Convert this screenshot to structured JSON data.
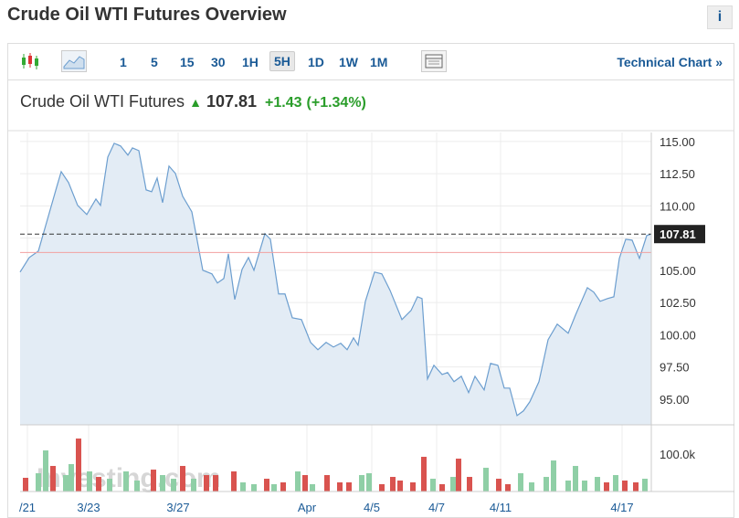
{
  "header": {
    "title": "Crude Oil WTI Futures Overview",
    "info": "i"
  },
  "toolbar": {
    "intervals": [
      "1",
      "5",
      "15",
      "30",
      "1H",
      "5H",
      "1D",
      "1W",
      "1M"
    ],
    "active": "5H",
    "link": "Technical Chart »"
  },
  "quote": {
    "name": "Crude Oil WTI Futures",
    "price": 107.81,
    "change": "+1.43",
    "change_pct": "(+1.34%)"
  },
  "watermark": "Investing.com",
  "chart": {
    "type": "line",
    "x": [
      0,
      10,
      20,
      30,
      40,
      45,
      53,
      63,
      73,
      83,
      88,
      96,
      103,
      110,
      118,
      123,
      130,
      138,
      144,
      150,
      156,
      163,
      170,
      178,
      188,
      200,
      210,
      216,
      223,
      228,
      235,
      243,
      250,
      256,
      268,
      274,
      283,
      290,
      298,
      308,
      318,
      326,
      335,
      343,
      351,
      358,
      365,
      370,
      378,
      388,
      396,
      405,
      418,
      428,
      435,
      440,
      446,
      453,
      462,
      468,
      475,
      483,
      491,
      498,
      508,
      515,
      523,
      530,
      536,
      544,
      551,
      558,
      568,
      578,
      588,
      600,
      608,
      621,
      628,
      635,
      643,
      650,
      656,
      663,
      670,
      678,
      686,
      691
    ],
    "series": [
      {
        "name": "Crude Oil WTI Futures",
        "color": "#6c9ecf",
        "fill": "#e3ecf5",
        "values": [
          104.86,
          105.99,
          106.49,
          108.97,
          111.45,
          112.66,
          111.81,
          110.04,
          109.33,
          110.53,
          110.04,
          113.79,
          114.86,
          114.65,
          113.94,
          114.5,
          114.29,
          111.24,
          111.1,
          112.16,
          110.25,
          113.09,
          112.52,
          110.74,
          109.54,
          105,
          104.72,
          104.01,
          104.36,
          106.28,
          102.73,
          105.07,
          105.99,
          105,
          107.84,
          107.41,
          103.16,
          103.16,
          101.31,
          101.17,
          99.4,
          98.83,
          99.4,
          99.04,
          99.33,
          98.83,
          99.75,
          99.18,
          102.59,
          104.86,
          104.72,
          103.44,
          101.17,
          101.88,
          102.94,
          102.8,
          96.56,
          97.62,
          96.91,
          97.06,
          96.35,
          96.77,
          95.5,
          96.77,
          95.71,
          97.77,
          97.62,
          95.85,
          95.85,
          93.72,
          94.08,
          94.79,
          96.35,
          99.61,
          100.82,
          100.11,
          101.52,
          103.65,
          103.3,
          102.59,
          102.8,
          102.94,
          105.92,
          107.41,
          107.34,
          105.92,
          107.7,
          107.81
        ]
      }
    ],
    "prev_close": 106.38,
    "prev_close_color": "#f2a0a0",
    "xlim": [
      0,
      691
    ],
    "xticks": [
      {
        "value": 8,
        "label": "/21"
      },
      {
        "value": 75,
        "label": "3/23"
      },
      {
        "value": 173,
        "label": "3/27"
      },
      {
        "value": 314,
        "label": "Apr"
      },
      {
        "value": 385,
        "label": "4/5"
      },
      {
        "value": 456,
        "label": "4/7"
      },
      {
        "value": 526,
        "label": "4/11"
      },
      {
        "value": 659,
        "label": "4/17"
      }
    ],
    "ylim": [
      93,
      115.7
    ],
    "yticks": [
      {
        "value": 95,
        "label": "95.00"
      },
      {
        "value": 97.5,
        "label": "97.50"
      },
      {
        "value": 100,
        "label": "100.00"
      },
      {
        "value": 102.5,
        "label": "102.50"
      },
      {
        "value": 105,
        "label": "105.00"
      },
      {
        "value": 107.5,
        "label": "107.50"
      },
      {
        "value": 110,
        "label": "110.00"
      },
      {
        "value": 112.5,
        "label": "112.50"
      },
      {
        "value": 115,
        "label": "115.00"
      }
    ],
    "grid": true,
    "volume": {
      "x": [
        6,
        20,
        28,
        36,
        50,
        56,
        64,
        76,
        86,
        98,
        116,
        128,
        146,
        156,
        168,
        178,
        190,
        204,
        214,
        234,
        244,
        256,
        270,
        278,
        288,
        304,
        312,
        320,
        336,
        350,
        360,
        374,
        382,
        396,
        408,
        416,
        430,
        442,
        452,
        462,
        474,
        480,
        492,
        510,
        524,
        534,
        548,
        560,
        576,
        584,
        600,
        608,
        618,
        632,
        642,
        652,
        662,
        674,
        684
      ],
      "values": [
        36600,
        48800,
        109800,
        68300,
        43900,
        73200,
        141500,
        53700,
        39000,
        34100,
        53700,
        29300,
        58500,
        43900,
        34100,
        68300,
        34100,
        43900,
        43900,
        53700,
        24400,
        19500,
        34100,
        19500,
        24400,
        53700,
        43900,
        19500,
        43900,
        24400,
        24400,
        43900,
        48800,
        19500,
        39000,
        29300,
        24400,
        92700,
        34100,
        19500,
        39000,
        87800,
        39000,
        63400,
        34100,
        19500,
        48800,
        24400,
        39000,
        82900,
        29300,
        68300,
        29300,
        39000,
        24400,
        43900,
        29300,
        24400,
        34100
      ],
      "colors": [
        "#d9534f",
        "#8fcfa6",
        "#8fcfa6",
        "#d9534f",
        "#8fcfa6",
        "#8fcfa6",
        "#d9534f",
        "#8fcfa6",
        "#d9534f",
        "#8fcfa6",
        "#8fcfa6",
        "#8fcfa6",
        "#d9534f",
        "#8fcfa6",
        "#8fcfa6",
        "#d9534f",
        "#8fcfa6",
        "#d9534f",
        "#d9534f",
        "#d9534f",
        "#8fcfa6",
        "#8fcfa6",
        "#d9534f",
        "#8fcfa6",
        "#d9534f",
        "#8fcfa6",
        "#d9534f",
        "#8fcfa6",
        "#d9534f",
        "#d9534f",
        "#d9534f",
        "#8fcfa6",
        "#8fcfa6",
        "#d9534f",
        "#d9534f",
        "#d9534f",
        "#d9534f",
        "#d9534f",
        "#8fcfa6",
        "#d9534f",
        "#8fcfa6",
        "#d9534f",
        "#d9534f",
        "#8fcfa6",
        "#d9534f",
        "#d9534f",
        "#8fcfa6",
        "#8fcfa6",
        "#8fcfa6",
        "#8fcfa6",
        "#8fcfa6",
        "#8fcfa6",
        "#8fcfa6",
        "#8fcfa6",
        "#d9534f",
        "#8fcfa6",
        "#d9534f",
        "#d9534f",
        "#8fcfa6"
      ],
      "ylim": [
        0,
        166000
      ],
      "yticks": [
        {
          "value": 100000,
          "label": "100.0k"
        }
      ]
    }
  }
}
